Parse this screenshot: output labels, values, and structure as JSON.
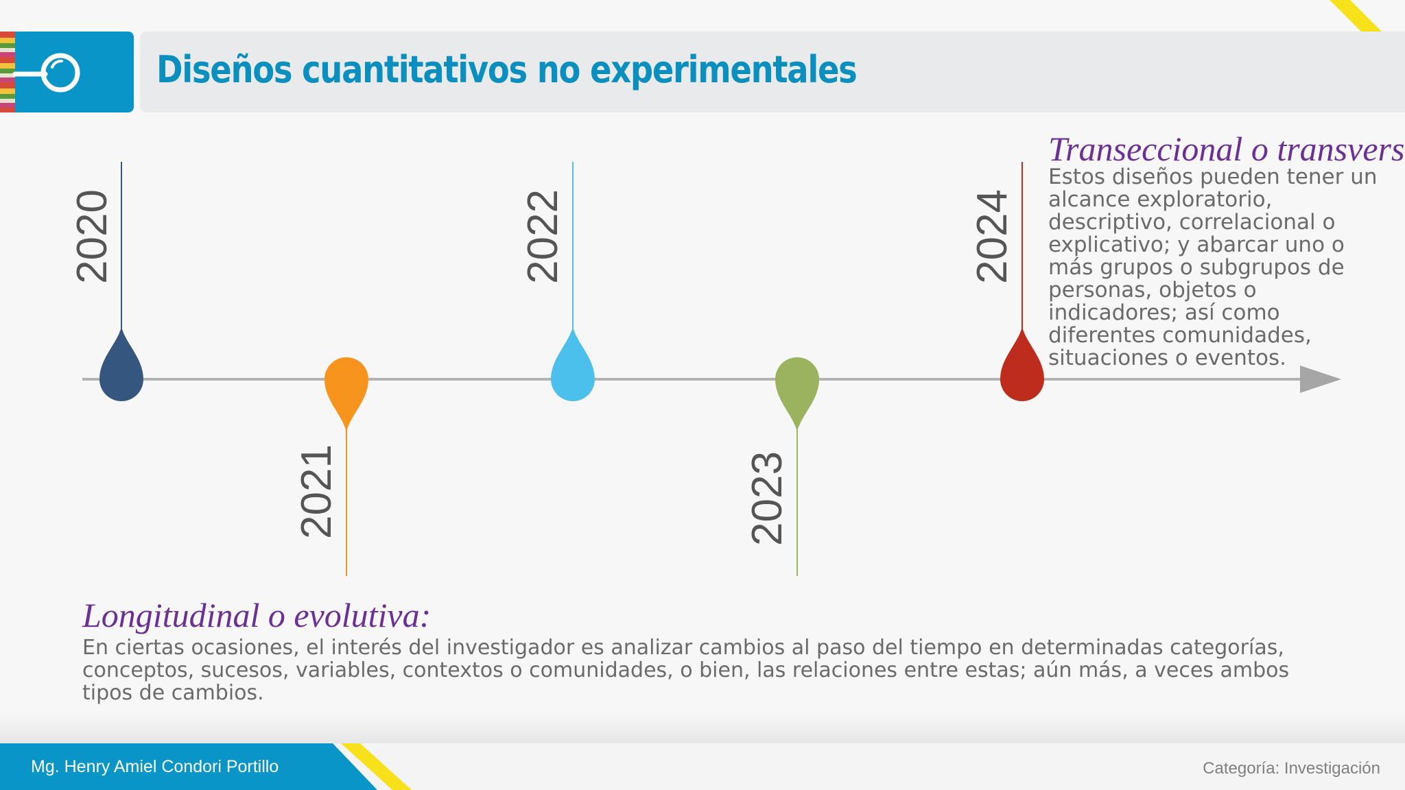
{
  "header": {
    "title": "Diseños cuantitativos no experimentales"
  },
  "timeline": {
    "years": [
      "2020",
      "2021",
      "2022",
      "2023",
      "2024"
    ],
    "colors": [
      "#35577f",
      "#f7941d",
      "#4cc0ec",
      "#9bb35e",
      "#bd2c1d"
    ],
    "axis_color": "#aaaaaa"
  },
  "transversal": {
    "title": "Transeccional o transversal:",
    "lines": [
      "Estos diseños pueden tener un",
      "alcance exploratorio,",
      "descriptivo, correlacional o",
      "explicativo; y abarcar uno o",
      "más grupos o subgrupos de",
      "personas, objetos o",
      "indicadores; así como",
      "diferentes comunidades,",
      "situaciones o eventos."
    ]
  },
  "longitudinal": {
    "title": "Longitudinal o evolutiva:",
    "lines": [
      "En ciertas ocasiones, el interés del investigador es analizar cambios al paso del tiempo en determinadas categorías,",
      "conceptos, sucesos, variables, contextos o comunidades, o bien, las relaciones entre estas; aún más, a veces ambos",
      "tipos de cambios."
    ]
  },
  "footer": {
    "author": "Mg. Henry Amiel Condori Portillo",
    "category": "Categoría: Investigación"
  },
  "theme": {
    "accent": "#0a95c9",
    "heading": "#6b2f96",
    "stripe": "#f6e11a"
  }
}
